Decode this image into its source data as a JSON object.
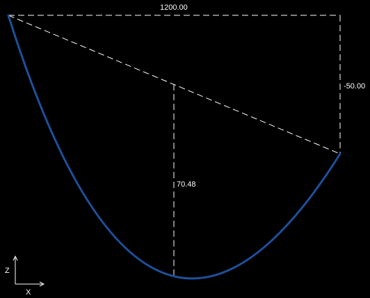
{
  "diagram": {
    "span_label": "1200.00",
    "elevation_label": "-50.00",
    "sag_label": "70.48",
    "curve_color": "#1f4f9a",
    "dimension_color": "#ffffff",
    "background_color": "#000000"
  },
  "triad": {
    "z_label": "Z",
    "x_label": "X"
  }
}
